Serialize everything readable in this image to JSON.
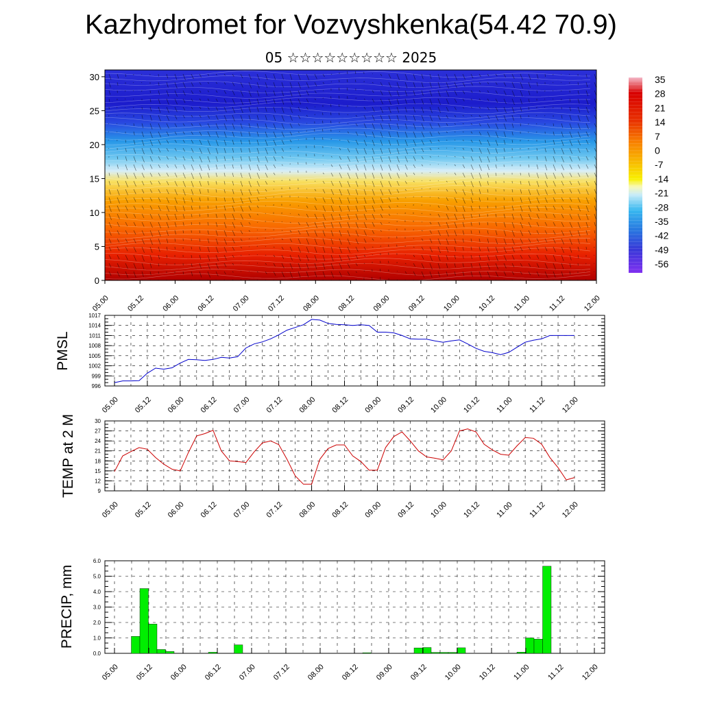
{
  "title": "Kazhydromet for Vozvyshkenka(54.42 70.9)",
  "subtitle": "05 ☆☆☆☆☆☆☆☆☆ 2025",
  "time_ticks": [
    "05.00",
    "05.12",
    "06.00",
    "06.12",
    "07.00",
    "07.12",
    "08.00",
    "08.12",
    "09.00",
    "09.12",
    "10.00",
    "10.12",
    "11.00",
    "11.12",
    "12.00"
  ],
  "chart_data": [
    {
      "type": "heatmap",
      "name": "temperature-wind-cross-section",
      "y_ticks": [
        0,
        5,
        10,
        15,
        20,
        25,
        30
      ],
      "ylim": [
        0,
        31
      ],
      "colorbar_labels": [
        "35",
        "28",
        "21",
        "14",
        "7",
        "0",
        "-7",
        "-14",
        "-21",
        "-28",
        "-35",
        "-42",
        "-49",
        "-56"
      ],
      "temperature_by_level": [
        {
          "level": 0,
          "value": 25
        },
        {
          "level": 5,
          "value": 16
        },
        {
          "level": 10,
          "value": 7
        },
        {
          "level": 15,
          "value": -10
        },
        {
          "level": 20,
          "value": -35
        },
        {
          "level": 25,
          "value": -52
        },
        {
          "level": 30,
          "value": -50
        }
      ]
    },
    {
      "type": "line",
      "name": "pmsl",
      "ylabel": "PMSL",
      "ylim": [
        996,
        1017
      ],
      "y_ticks": [
        996,
        999,
        1002,
        1005,
        1008,
        1011,
        1014,
        1017
      ],
      "grid": true,
      "color": "#0000cc",
      "x": [
        0,
        1,
        2,
        3,
        4,
        5,
        6,
        7,
        8,
        9,
        10,
        11,
        12,
        13,
        14,
        15,
        16,
        17,
        18,
        19,
        20,
        21,
        22,
        23,
        24,
        25,
        26,
        27,
        28,
        29,
        30,
        31,
        32,
        33,
        34,
        35,
        36,
        37,
        38,
        39,
        40,
        41,
        42,
        43,
        44,
        45,
        46,
        47,
        48,
        49,
        50,
        51,
        52,
        53,
        54,
        55,
        56
      ],
      "values": [
        997,
        997.5,
        997.5,
        997.6,
        999.8,
        1001.3,
        1001.0,
        1001.4,
        1002.8,
        1003.9,
        1003.8,
        1003.6,
        1003.9,
        1004.5,
        1004.3,
        1004.7,
        1007.3,
        1008.5,
        1009.1,
        1010.0,
        1011.2,
        1012.6,
        1013.4,
        1014.2,
        1015.8,
        1015.6,
        1014.6,
        1014.3,
        1014.2,
        1014.0,
        1014.2,
        1014.0,
        1012.0,
        1012.0,
        1011.8,
        1011.0,
        1010.0,
        1009.9,
        1009.9,
        1009.4,
        1009.0,
        1009.4,
        1009.7,
        1008.5,
        1007.2,
        1006.3,
        1005.9,
        1005.3,
        1006.0,
        1007.5,
        1009.0,
        1009.6,
        1010.0,
        1011.0,
        1011.0,
        1011.0,
        1011.0
      ]
    },
    {
      "type": "line",
      "name": "temp-2m",
      "ylabel": "TEMP at 2 M",
      "ylim": [
        9,
        30
      ],
      "y_ticks": [
        9,
        12,
        15,
        18,
        21,
        24,
        27,
        30
      ],
      "grid": true,
      "color": "#cc0000",
      "x": [
        0,
        1,
        2,
        3,
        4,
        5,
        6,
        7,
        8,
        9,
        10,
        11,
        12,
        13,
        14,
        15,
        16,
        17,
        18,
        19,
        20,
        21,
        22,
        23,
        24,
        25,
        26,
        27,
        28,
        29,
        30,
        31,
        32,
        33,
        34,
        35,
        36,
        37,
        38,
        39,
        40,
        41,
        42,
        43,
        44,
        45,
        46,
        47,
        48,
        49,
        50,
        51,
        52,
        53,
        54,
        55,
        56
      ],
      "values": [
        14.8,
        19.5,
        20.8,
        22.0,
        21.5,
        19.0,
        17.0,
        15.5,
        15.0,
        20.5,
        25.5,
        26.2,
        27.2,
        21.0,
        18.0,
        17.8,
        17.5,
        20.7,
        23.4,
        24.0,
        22.9,
        18.5,
        13.5,
        11.0,
        11.0,
        18.5,
        21.7,
        22.8,
        22.8,
        19.5,
        17.8,
        15.2,
        15.2,
        22.0,
        25.3,
        26.7,
        24.0,
        21.0,
        19.2,
        18.8,
        18.3,
        21.0,
        27.0,
        27.6,
        26.7,
        23.0,
        21.3,
        20.0,
        19.7,
        22.5,
        25.0,
        24.8,
        23.0,
        19.0,
        16.0,
        12.3,
        13.0
      ]
    },
    {
      "type": "bar",
      "name": "precip",
      "ylabel": "PRECIP, mm",
      "ylim": [
        0,
        6
      ],
      "y_ticks": [
        "0.0",
        "1.0",
        "2.0",
        "3.0",
        "4.0",
        "5.0",
        "6.0"
      ],
      "grid": true,
      "color": "#00ee00",
      "x": [
        0,
        1,
        2,
        3,
        4,
        5,
        6,
        7,
        8,
        9,
        10,
        11,
        12,
        13,
        14,
        15,
        16,
        17,
        18,
        19,
        20,
        21,
        22,
        23,
        24,
        25,
        26,
        27,
        28,
        29,
        30,
        31,
        32,
        33,
        34,
        35,
        36,
        37,
        38,
        39,
        40,
        41,
        42,
        43,
        44,
        45,
        46,
        47,
        48,
        49,
        50,
        51,
        52,
        53,
        54,
        55
      ],
      "values": [
        0,
        1.1,
        4.2,
        1.9,
        0.25,
        0.12,
        0,
        0,
        0,
        0,
        0.07,
        0,
        0,
        0.55,
        0,
        0,
        0,
        0,
        0,
        0,
        0,
        0,
        0,
        0,
        0,
        0,
        0,
        0,
        0.04,
        0,
        0,
        0,
        0,
        0,
        0.35,
        0.38,
        0.06,
        0.06,
        0.06,
        0.36,
        0,
        0,
        0,
        0,
        0,
        0,
        0.08,
        1.0,
        0.92,
        5.65,
        0,
        0,
        0,
        0,
        0,
        0
      ]
    }
  ]
}
